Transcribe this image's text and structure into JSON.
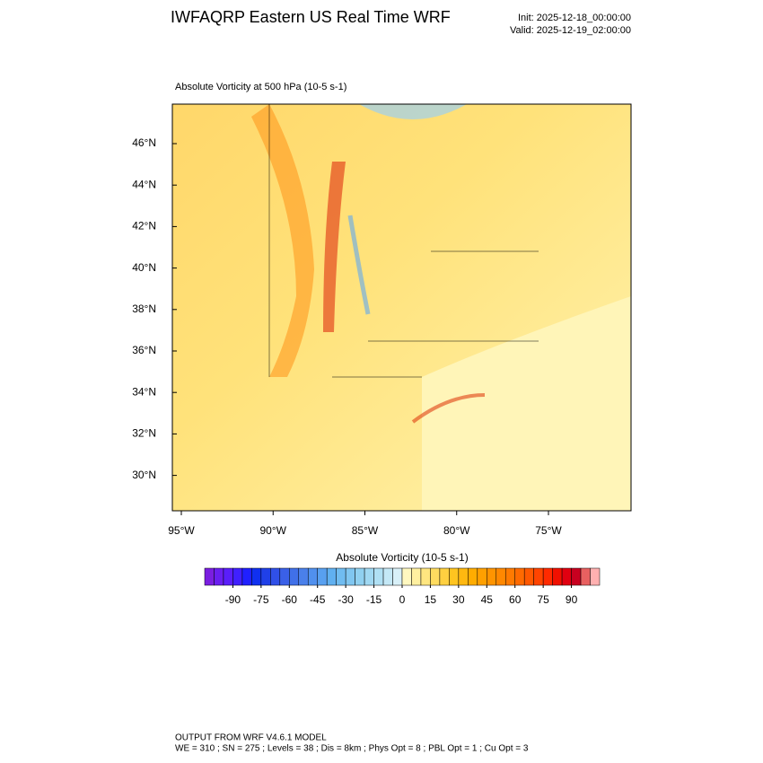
{
  "header": {
    "title": "IWFAQRP Eastern US Real Time WRF",
    "init": "Init: 2025-12-18_00:00:00",
    "valid": "Valid: 2025-12-19_02:00:00"
  },
  "map": {
    "title": "Absolute Vorticity at 500 hPa   (10-5 s-1)",
    "lat_ticks": [
      {
        "value": 46,
        "label": "46°N"
      },
      {
        "value": 44,
        "label": "44°N"
      },
      {
        "value": 42,
        "label": "42°N"
      },
      {
        "value": 40,
        "label": "40°N"
      },
      {
        "value": 38,
        "label": "38°N"
      },
      {
        "value": 36,
        "label": "36°N"
      },
      {
        "value": 34,
        "label": "34°N"
      },
      {
        "value": 32,
        "label": "32°N"
      },
      {
        "value": 30,
        "label": "30°N"
      }
    ],
    "lon_ticks": [
      {
        "value": -95,
        "label": "95°W"
      },
      {
        "value": -90,
        "label": "90°W"
      },
      {
        "value": -85,
        "label": "85°W"
      },
      {
        "value": -80,
        "label": "80°W"
      },
      {
        "value": -75,
        "label": "75°W"
      }
    ]
  },
  "colorbar": {
    "title": "Absolute Vorticity  (10-5 s-1)",
    "lim": [
      -105,
      105
    ],
    "ticks": [
      -90,
      -75,
      -60,
      -45,
      -30,
      -15,
      0,
      15,
      30,
      45,
      60,
      75,
      90
    ],
    "colors": [
      "#7a1ee0",
      "#6a1ef0",
      "#5a1efa",
      "#4020ff",
      "#2020ff",
      "#1030f0",
      "#2040e8",
      "#3050e8",
      "#3a60e8",
      "#4070e8",
      "#4a80ea",
      "#5090ee",
      "#58a0f0",
      "#60b0f0",
      "#70bcf0",
      "#80c6f0",
      "#90d0f0",
      "#a0d8f2",
      "#b0e0f4",
      "#c4e8f6",
      "#d8f0f8",
      "#fff8c0",
      "#fff0a0",
      "#ffe680",
      "#ffdc60",
      "#ffd040",
      "#ffc420",
      "#ffb810",
      "#ffac00",
      "#ffa000",
      "#ff9400",
      "#ff8800",
      "#ff7a00",
      "#ff6a00",
      "#ff5800",
      "#ff4400",
      "#ff2a00",
      "#f01000",
      "#e00010",
      "#c80020",
      "#e86060",
      "#ffb0b0"
    ]
  },
  "footer": {
    "line1": "OUTPUT FROM WRF V4.6.1 MODEL",
    "line2": "WE = 310 ; SN = 275 ; Levels = 38 ; Dis = 8km ; Phys Opt = 8 ; PBL Opt = 1 ; Cu Opt = 3"
  }
}
